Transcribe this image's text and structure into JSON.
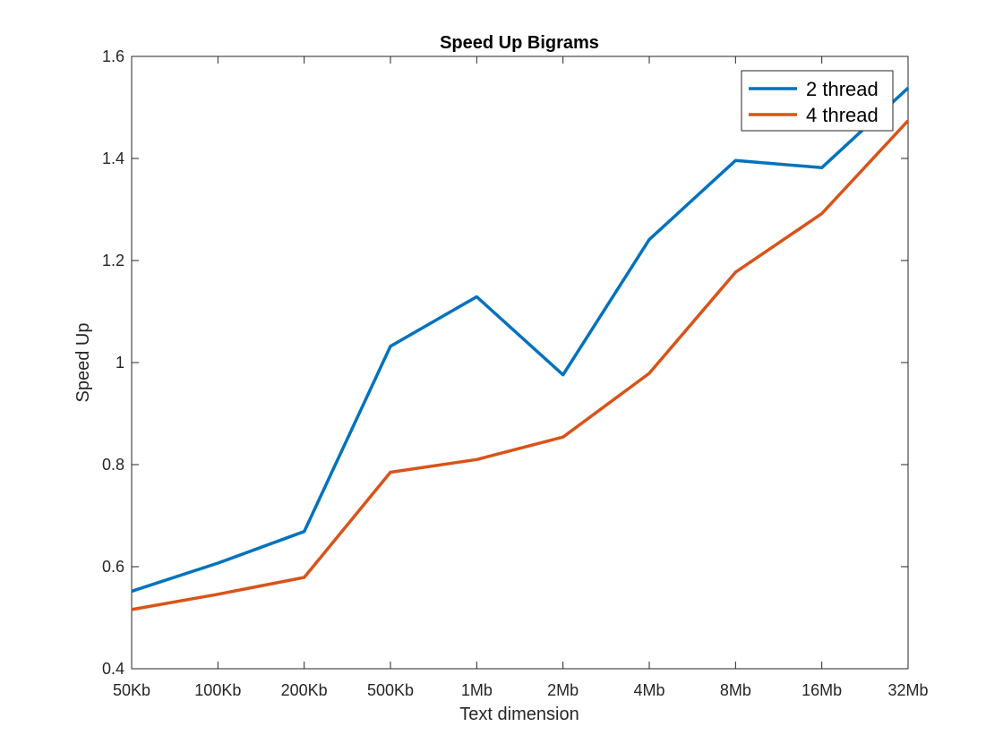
{
  "chart_data": {
    "type": "line",
    "title": "Speed Up Bigrams",
    "xlabel": "Text dimension",
    "ylabel": "Speed Up",
    "categories": [
      "50Kb",
      "100Kb",
      "200Kb",
      "500Kb",
      "1Mb",
      "2Mb",
      "4Mb",
      "8Mb",
      "16Mb",
      "32Mb"
    ],
    "ylim": [
      0.4,
      1.6
    ],
    "yticks": [
      "0.4",
      "0.6",
      "0.8",
      "1",
      "1.2",
      "1.4",
      "1.6"
    ],
    "grid": false,
    "legend_position": "top-right",
    "series": [
      {
        "name": "2 thread",
        "color": "#0072BD",
        "values": [
          0.552,
          0.607,
          0.669,
          1.032,
          1.129,
          0.976,
          1.241,
          1.396,
          1.382,
          1.538
        ]
      },
      {
        "name": "4 thread",
        "color": "#D95319",
        "values": [
          0.516,
          0.546,
          0.579,
          0.785,
          0.81,
          0.854,
          0.979,
          1.177,
          1.292,
          1.474
        ]
      }
    ]
  }
}
